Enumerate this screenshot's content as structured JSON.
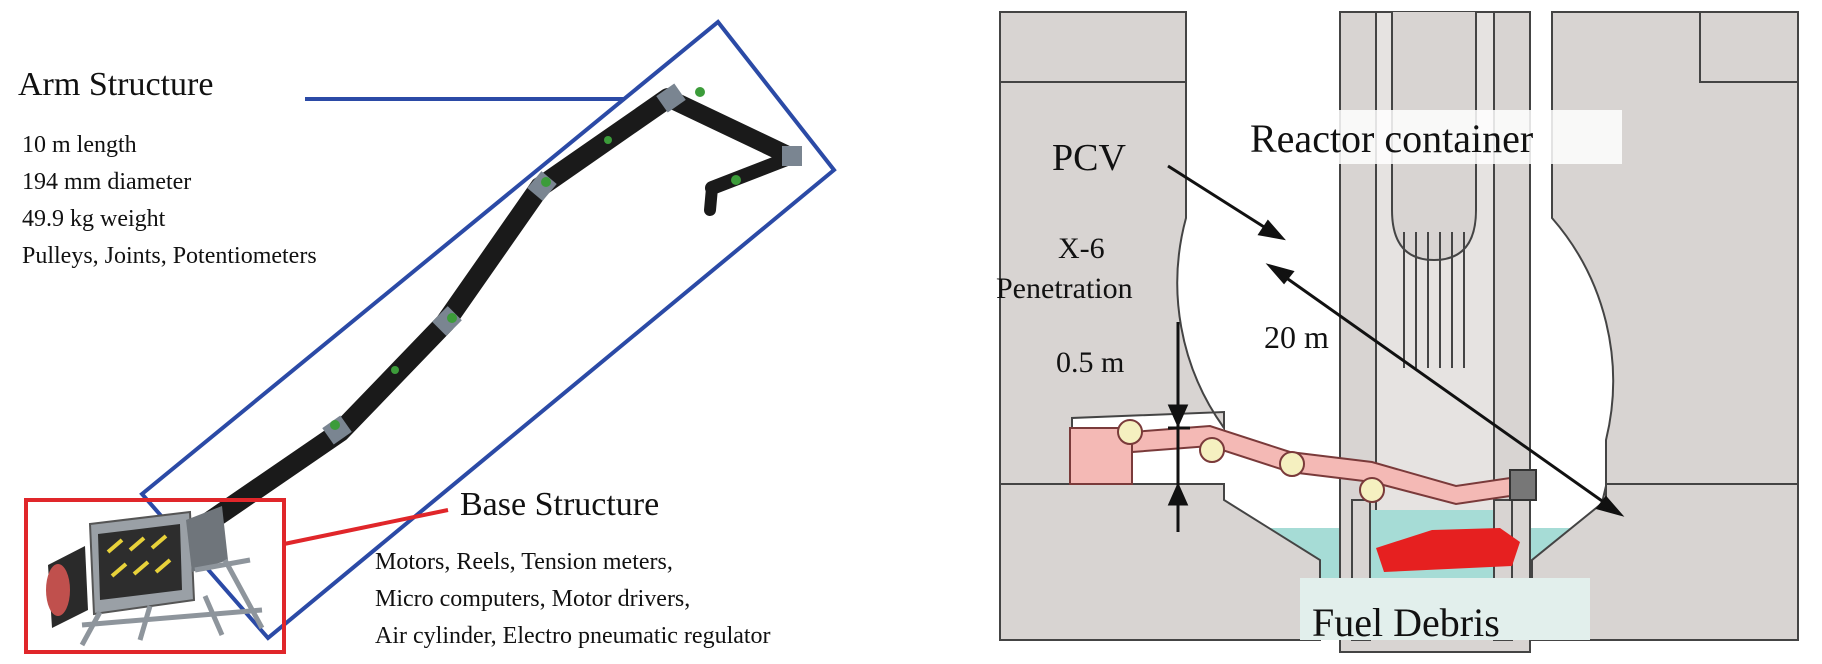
{
  "left_panel": {
    "arm_title": "Arm Structure",
    "arm_specs": [
      "10 m length",
      "194 mm diameter",
      "49.9 kg weight",
      "Pulleys, Joints, Potentiometers"
    ],
    "base_title": "Base Structure",
    "base_specs": [
      "Motors, Reels, Tension meters,",
      "Micro computers, Motor drivers,",
      "Air cylinder, Electro pneumatic regulator"
    ],
    "colors": {
      "arm_box": "#2b4aa6",
      "base_box": "#e0262a",
      "arm": "#1a1a1a",
      "joint": "#3c9c3a"
    }
  },
  "right_panel": {
    "reactor_label": "Reactor container",
    "pcv_label": "PCV",
    "x6_label_line1": "X-6",
    "x6_label_line2": "Penetration",
    "gap_label": "0.5 m",
    "span_label": "20 m",
    "debris_label": "Fuel Debris",
    "colors": {
      "structure": "#d8d4d2",
      "water": "#a6dcd6",
      "arm": "#f4b9b5",
      "debris": "#e62020",
      "joint": "#f5f0c0"
    }
  }
}
